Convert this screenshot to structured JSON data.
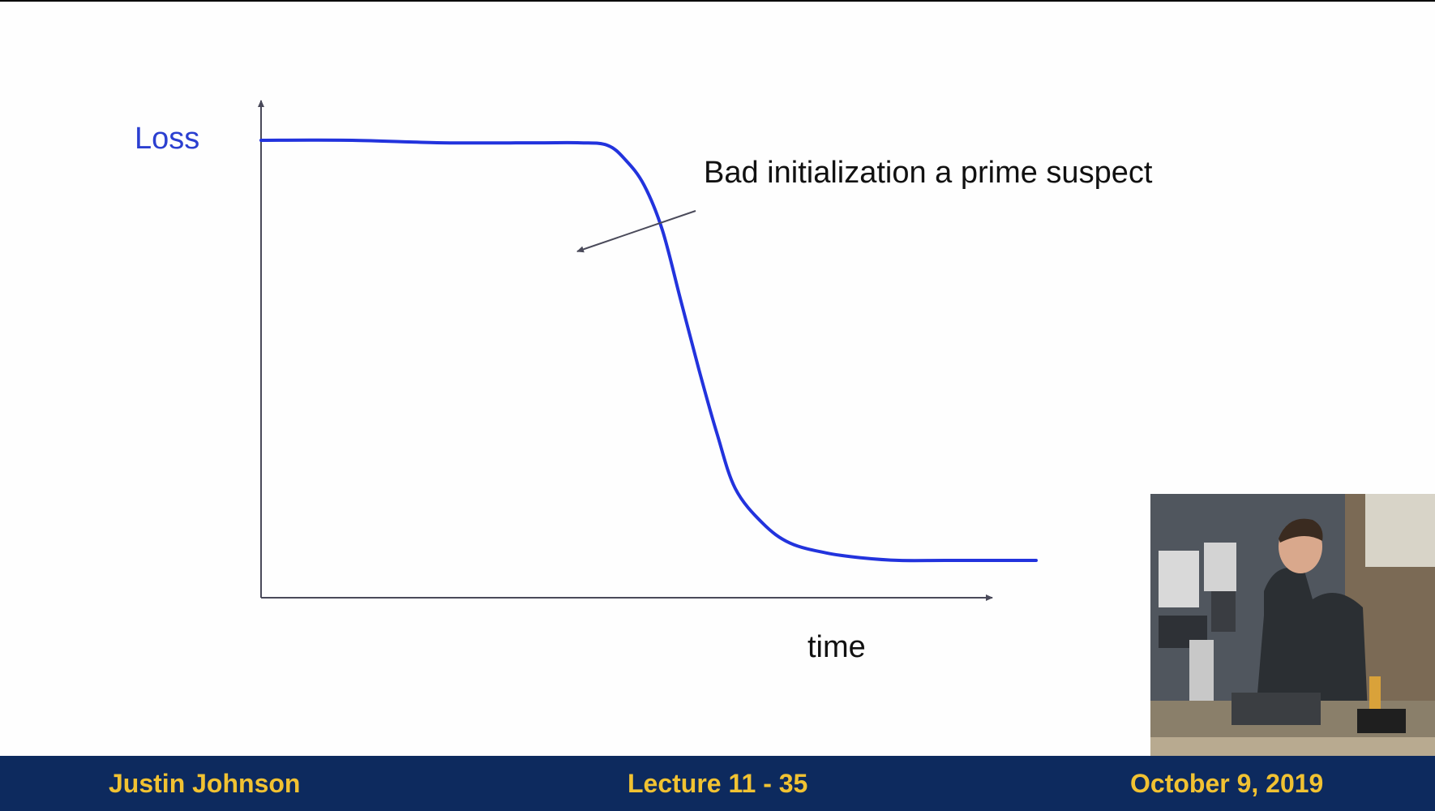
{
  "chart_data": {
    "type": "line",
    "title": "",
    "xlabel": "time",
    "ylabel": "Loss",
    "annotation": "Bad initialization a prime suspect",
    "x": [
      0,
      10,
      20,
      30,
      35,
      38,
      40,
      42,
      44,
      46,
      48,
      50,
      52,
      55,
      58,
      62,
      66,
      70,
      75,
      80,
      85
    ],
    "series": [
      {
        "values": [
          0.92,
          0.92,
          0.915,
          0.915,
          0.915,
          0.91,
          0.88,
          0.83,
          0.74,
          0.6,
          0.46,
          0.33,
          0.22,
          0.15,
          0.11,
          0.09,
          0.08,
          0.075,
          0.075,
          0.075,
          0.075
        ],
        "color": "#2233dd"
      }
    ],
    "xlim": [
      0,
      85
    ],
    "ylim": [
      0,
      1
    ],
    "grid": false,
    "axis_color": "#4a4a5a"
  },
  "footer": {
    "author": "Justin Johnson",
    "lecture": "Lecture 11 - 35",
    "date": "October 9, 2019"
  }
}
